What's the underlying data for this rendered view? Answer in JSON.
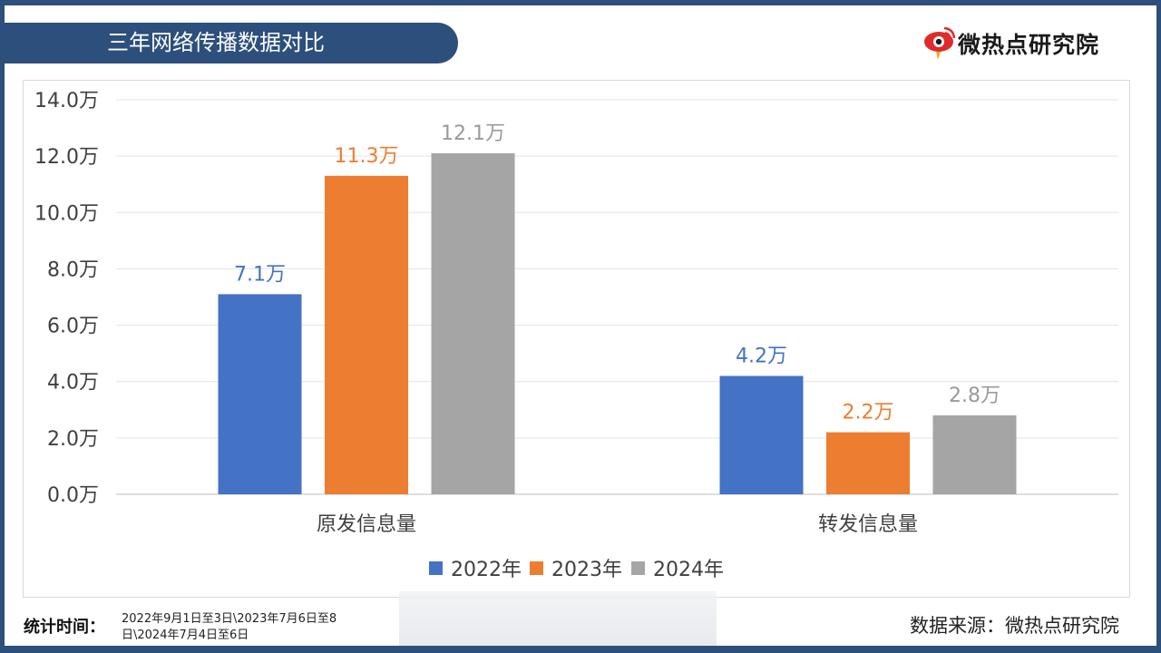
{
  "title": "三年网络传播数据对比",
  "brand": {
    "name": "微热点研究院",
    "logo_icon": "weibo-eye-icon"
  },
  "chart_data": {
    "type": "bar",
    "categories": [
      "原发信息量",
      "转发信息量"
    ],
    "series": [
      {
        "name": "2022年",
        "values": [
          7.1,
          4.2
        ],
        "labels": [
          "7.1万",
          "4.2万"
        ],
        "color": "#4472c4"
      },
      {
        "name": "2023年",
        "values": [
          11.3,
          2.2
        ],
        "labels": [
          "11.3万",
          "2.2万"
        ],
        "color": "#ed7d31"
      },
      {
        "name": "2024年",
        "values": [
          12.1,
          2.8
        ],
        "labels": [
          "12.1万",
          "2.8万"
        ],
        "color": "#a5a5a5"
      }
    ],
    "ylim": [
      0,
      14
    ],
    "yticks": [
      0,
      2,
      4,
      6,
      8,
      10,
      12,
      14
    ],
    "ytick_labels": [
      "0.0万",
      "2.0万",
      "4.0万",
      "6.0万",
      "8.0万",
      "10.0万",
      "12.0万",
      "14.0万"
    ],
    "grid": true,
    "legend": "bottom-center"
  },
  "footer": {
    "stat_time_label": "统计时间：",
    "stat_time_range": "2022年9月1日至3日\\2023年7月6日至8日\\2024年7月4日至6日",
    "source": "数据来源：微热点研究院"
  }
}
